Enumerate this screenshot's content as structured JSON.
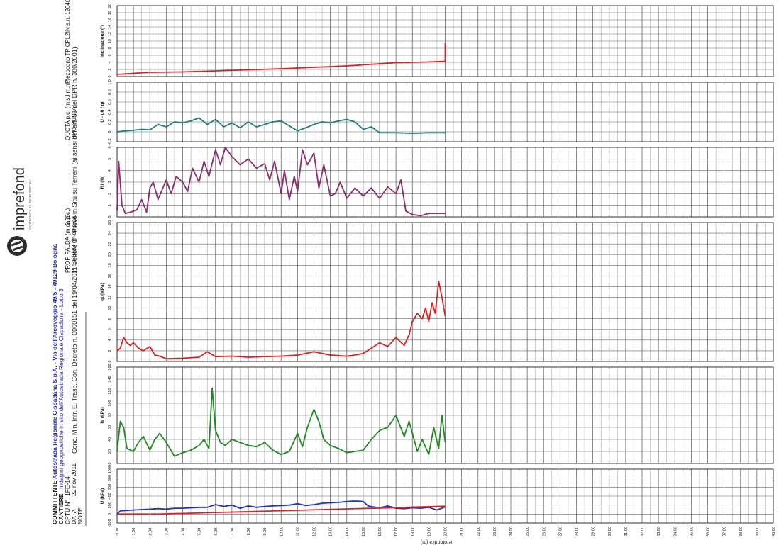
{
  "header": {
    "decree": "Conc. Min. Infr. E. Trasp. Con. Decreto n. 0000151 del 19/04/2011 Settore C - Prove in Situ su Terreni (ai sensi dell'art. 59 del DPR n. 380/2001)",
    "committente_label": "COMMITTENTE",
    "committente_value": "Autostrada Regionale Cispadana S.p.A. - Via dell'Arcoveggio 49/5 - 40129 Bologna",
    "cantiere_label": "CANTIERE",
    "cantiere_value": "Indagini geognostiche in sito dell'Autostrada Regionale Cispadana - Lotto 3",
    "cptu_label": "CPTU N°",
    "cptu_value": "1FE-14",
    "data_label": "DATA",
    "data_value": "22 nov 2011",
    "note_label": "NOTE",
    "falda_label": "PROF. FALDA (m da p.c.)",
    "falda_value": "2.55",
    "preforo_label": "PREFORO (m da p.c.)",
    "preforo_value": "0.20",
    "quota_label": "QUOTA p.c. (m s.l.m.m.)",
    "punta_label": "TIPO PUNTA",
    "punta_value": "Piezocono TP CPL2IN s.n. 120409"
  },
  "logo": {
    "name": "imprefond",
    "tagline": "GEOTECNICA E LAVORI SPECIALI"
  },
  "colors": {
    "inclination": "#e02020",
    "bq": "#1a7f7f",
    "rf": "#8b2d6b",
    "qt": "#e02020",
    "fs": "#1f8a1f",
    "u": "#1f2fd6",
    "u0": "#e02020",
    "grid": "#555555"
  },
  "chart_data": {
    "type": "line",
    "depth_axis": {
      "label": "Profondità (m)",
      "ticks": [
        "0.00",
        "1.00",
        "2.00",
        "3.00",
        "4.00",
        "5.00",
        "6.00",
        "7.00",
        "8.00",
        "9.00",
        "10.00",
        "11.00",
        "12.00",
        "13.00",
        "14.00",
        "15.00",
        "16.00",
        "17.00",
        "18.00",
        "19.00",
        "20.00",
        "21.00",
        "22.00",
        "23.00",
        "24.00",
        "25.00",
        "26.00",
        "27.00",
        "28.00",
        "29.00",
        "30.00",
        "31.00",
        "32.00",
        "33.00",
        "34.00",
        "35.00",
        "36.00",
        "37.00",
        "38.00",
        "39.00",
        "40.00"
      ],
      "range": [
        0,
        40
      ]
    },
    "panels": [
      {
        "id": "inclination",
        "label": "Inclinazione (°)",
        "ticks": [
          "0",
          "2",
          "4",
          "6",
          "8",
          "10",
          "12",
          "14",
          "16",
          "18",
          "20"
        ],
        "range": [
          0,
          20
        ],
        "series": [
          {
            "depth": [
              0.0,
              2.0,
              4.0,
              6.0,
              8.0,
              10.0,
              12.0,
              14.0,
              15.0,
              16.0,
              17.0,
              18.0,
              19.0,
              19.95,
              20.0,
              20.0
            ],
            "values": [
              0.6,
              1.2,
              1.3,
              1.6,
              1.9,
              2.2,
              2.6,
              3.0,
              3.3,
              3.6,
              3.9,
              4.0,
              4.1,
              4.3,
              4.3,
              9.5
            ]
          }
        ]
      },
      {
        "id": "bq",
        "label": "U - u0 / qt",
        "ticks": [
          "-0.2",
          "0",
          "0.2",
          "0.4",
          "0.6",
          "0.8",
          "1.0"
        ],
        "range": [
          -0.2,
          1.0
        ],
        "series": [
          {
            "depth": [
              0.0,
              0.5,
              1.0,
              1.5,
              2.0,
              2.5,
              3.0,
              3.5,
              4.0,
              4.5,
              5.0,
              5.5,
              6.0,
              6.5,
              7.0,
              7.5,
              8.0,
              8.5,
              9.0,
              9.5,
              10.0,
              10.5,
              11.0,
              11.5,
              12.0,
              12.5,
              13.0,
              13.5,
              14.0,
              14.5,
              15.0,
              15.5,
              16.0,
              17.0,
              18.0,
              19.0,
              20.0
            ],
            "values": [
              0.0,
              0.02,
              0.03,
              0.05,
              0.04,
              0.15,
              0.1,
              0.2,
              0.18,
              0.22,
              0.28,
              0.15,
              0.25,
              0.1,
              0.18,
              0.08,
              0.2,
              0.1,
              0.15,
              0.2,
              0.22,
              0.12,
              0.02,
              0.08,
              0.15,
              0.2,
              0.18,
              0.22,
              0.25,
              0.2,
              0.05,
              0.1,
              -0.02,
              -0.02,
              -0.03,
              -0.02,
              -0.02
            ]
          }
        ]
      },
      {
        "id": "rf",
        "label": "Rf (%)",
        "ticks": [
          "0",
          "1",
          "2",
          "3",
          "4",
          "5",
          "6"
        ],
        "range": [
          0,
          6
        ],
        "series": [
          {
            "depth": [
              0.0,
              0.1,
              0.3,
              0.5,
              0.8,
              1.2,
              1.5,
              1.8,
              2.0,
              2.2,
              2.5,
              3.0,
              3.3,
              3.6,
              4.0,
              4.3,
              4.6,
              5.0,
              5.3,
              5.6,
              6.0,
              6.3,
              6.6,
              7.0,
              7.5,
              8.0,
              8.5,
              9.0,
              9.3,
              9.6,
              10.0,
              10.2,
              10.5,
              10.8,
              11.0,
              11.3,
              11.6,
              12.0,
              12.3,
              12.6,
              13.0,
              13.3,
              13.6,
              14.0,
              14.5,
              15.0,
              15.5,
              16.0,
              16.5,
              17.0,
              17.3,
              17.6,
              18.0,
              18.5,
              19.0,
              19.5,
              20.0
            ],
            "values": [
              0.5,
              4.8,
              1.0,
              0.3,
              0.4,
              0.6,
              1.5,
              0.4,
              2.5,
              3.0,
              1.5,
              3.2,
              2.0,
              3.5,
              3.0,
              2.2,
              4.2,
              3.0,
              4.8,
              3.5,
              5.8,
              4.5,
              6.0,
              5.2,
              4.5,
              5.0,
              4.2,
              4.6,
              3.2,
              4.8,
              2.0,
              4.0,
              1.5,
              3.5,
              2.2,
              5.8,
              4.5,
              5.5,
              2.5,
              4.5,
              1.8,
              2.0,
              3.0,
              1.6,
              2.5,
              1.8,
              2.5,
              1.6,
              2.6,
              2.0,
              3.2,
              0.5,
              0.2,
              0.1,
              0.3,
              0.3,
              0.3
            ]
          }
        ]
      },
      {
        "id": "qt",
        "label": "qt (MPa)",
        "ticks": [
          "0",
          "2",
          "4",
          "6",
          "8",
          "10",
          "12",
          "14",
          "16",
          "18",
          "20",
          "22",
          "24",
          "26"
        ],
        "range": [
          0,
          26
        ],
        "series": [
          {
            "depth": [
              0.0,
              0.2,
              0.4,
              0.6,
              0.8,
              1.0,
              1.3,
              1.6,
              2.0,
              2.3,
              2.6,
              3.0,
              4.0,
              5.0,
              5.5,
              6.0,
              7.0,
              8.0,
              9.0,
              10.0,
              11.0,
              12.0,
              13.0,
              14.0,
              14.5,
              15.0,
              15.5,
              16.0,
              16.5,
              17.0,
              17.5,
              17.8,
              18.0,
              18.3,
              18.6,
              18.8,
              19.0,
              19.2,
              19.4,
              19.6,
              19.8,
              20.0
            ],
            "values": [
              2.0,
              2.5,
              4.5,
              3.5,
              3.0,
              3.5,
              2.5,
              2.0,
              2.8,
              1.2,
              1.0,
              0.5,
              0.6,
              0.8,
              1.8,
              0.9,
              1.0,
              0.8,
              0.9,
              1.0,
              1.2,
              1.8,
              1.2,
              1.0,
              1.2,
              1.5,
              2.5,
              3.5,
              2.8,
              4.5,
              3.0,
              5.0,
              7.5,
              9.0,
              8.0,
              10.0,
              7.5,
              11.0,
              9.0,
              15.0,
              12.0,
              8.5
            ]
          }
        ]
      },
      {
        "id": "fs",
        "label": "fs (kPa)",
        "ticks": [
          "0",
          "20",
          "40",
          "60",
          "80",
          "100",
          "120",
          "140",
          "160"
        ],
        "range": [
          0,
          160
        ],
        "series": [
          {
            "depth": [
              0.0,
              0.2,
              0.4,
              0.6,
              1.0,
              1.3,
              1.6,
              2.0,
              2.3,
              2.6,
              3.0,
              3.5,
              4.0,
              4.5,
              5.0,
              5.3,
              5.6,
              5.8,
              6.0,
              6.3,
              6.6,
              7.0,
              7.5,
              8.0,
              8.5,
              9.0,
              9.5,
              10.0,
              10.5,
              11.0,
              11.3,
              11.6,
              12.0,
              12.3,
              12.6,
              13.0,
              13.5,
              14.0,
              14.5,
              15.0,
              15.5,
              16.0,
              16.5,
              17.0,
              17.5,
              17.8,
              18.0,
              18.3,
              18.6,
              19.0,
              19.3,
              19.6,
              19.8,
              20.0
            ],
            "values": [
              20,
              70,
              60,
              25,
              20,
              35,
              45,
              22,
              40,
              50,
              35,
              12,
              18,
              22,
              30,
              40,
              25,
              125,
              55,
              35,
              30,
              40,
              35,
              30,
              28,
              35,
              22,
              15,
              20,
              50,
              28,
              60,
              90,
              70,
              40,
              30,
              25,
              18,
              20,
              22,
              40,
              55,
              60,
              80,
              45,
              70,
              50,
              20,
              40,
              15,
              60,
              25,
              80,
              35
            ]
          }
        ]
      },
      {
        "id": "u",
        "label": "U (kPa)",
        "ticks": [
          "-200",
          "0",
          "200",
          "400",
          "600",
          "800",
          "1000"
        ],
        "range": [
          -200,
          1000
        ],
        "series": [
          {
            "name": "u",
            "depth": [
              0.0,
              0.2,
              0.5,
              1.0,
              1.5,
              2.0,
              2.5,
              3.0,
              3.5,
              4.0,
              4.5,
              5.0,
              5.5,
              6.0,
              6.5,
              7.0,
              7.5,
              8.0,
              8.5,
              9.0,
              9.5,
              10.0,
              10.5,
              11.0,
              11.5,
              12.0,
              12.5,
              13.0,
              13.5,
              14.0,
              14.5,
              15.0,
              15.3,
              15.6,
              16.0,
              16.5,
              17.0,
              17.5,
              18.0,
              18.5,
              19.0,
              19.5,
              20.0
            ],
            "values": [
              0,
              70,
              80,
              90,
              100,
              110,
              120,
              110,
              130,
              130,
              140,
              150,
              150,
              210,
              170,
              200,
              130,
              180,
              150,
              170,
              180,
              190,
              200,
              230,
              190,
              210,
              240,
              250,
              260,
              280,
              290,
              280,
              180,
              160,
              140,
              180,
              130,
              120,
              140,
              130,
              150,
              90,
              160
            ]
          },
          {
            "name": "u0",
            "depth": [
              0.0,
              2.55,
              20.0
            ],
            "values": [
              0,
              0,
              175
            ]
          }
        ]
      }
    ]
  }
}
